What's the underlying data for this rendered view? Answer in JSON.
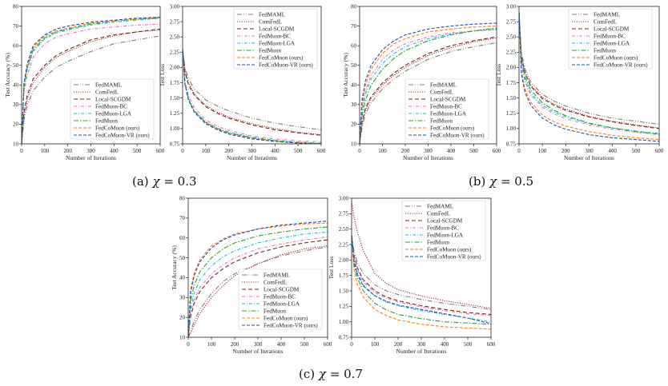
{
  "legend_entries": [
    "FedMAML",
    "ComFedL",
    "Local-SCGDM",
    "FedMuon-BC",
    "FedMuon-LGA",
    "FedMuon",
    "FedCoMuon (ours)",
    "FedCoMuon-VR (ours)"
  ],
  "series_styles": [
    {
      "name": "FedMAML",
      "color": "#7f7f7f",
      "dash": "6 2 1 2 1 2"
    },
    {
      "name": "ComFedL",
      "color": "#a52a2a",
      "dash": "1.2 1.6"
    },
    {
      "name": "Local-SCGDM",
      "color": "#6b2c1b",
      "dash": "5 3"
    },
    {
      "name": "FedMuon-BC",
      "color": "#e377c2",
      "dash": "4 2 1 2"
    },
    {
      "name": "FedMuon-LGA",
      "color": "#17becf",
      "dash": "4 2 1 2"
    },
    {
      "name": "FedMuon",
      "color": "#2ca02c",
      "dash": "6 2 1.5 2"
    },
    {
      "name": "FedCoMuon (ours)",
      "color": "#ff7f0e",
      "dash": "4 2"
    },
    {
      "name": "FedCoMuon-VR (ours)",
      "color": "#1f4fb4",
      "dash": "4 2"
    }
  ],
  "captions": [
    {
      "label": "(a)",
      "sym": "χ",
      "value": "= 0.3"
    },
    {
      "label": "(b)",
      "sym": "χ",
      "value": "= 0.5"
    },
    {
      "label": "(c)",
      "sym": "χ",
      "value": "= 0.7"
    }
  ],
  "chart_data": [
    {
      "type": "line",
      "panel": "(a) χ = 0.3, accuracy",
      "xlabel": "Number of Iterations",
      "ylabel": "Test Accuracy (%)",
      "xlim": [
        0,
        600
      ],
      "ylim": [
        10,
        80
      ],
      "xticks": [
        0,
        100,
        200,
        300,
        400,
        500,
        600
      ],
      "yticks": [
        10,
        20,
        30,
        40,
        50,
        60,
        70,
        80
      ],
      "legend_position": "lower-right",
      "grid": false,
      "x": [
        0,
        10,
        25,
        50,
        100,
        150,
        200,
        300,
        400,
        500,
        600
      ],
      "series": [
        {
          "name": "FedMAML",
          "values": [
            10,
            22,
            30,
            37,
            44,
            49,
            52,
            57,
            61,
            63,
            65
          ]
        },
        {
          "name": "ComFedL",
          "values": [
            10,
            24,
            33,
            41,
            49,
            54,
            57,
            62,
            65,
            67,
            68
          ]
        },
        {
          "name": "Local-SCGDM",
          "values": [
            10,
            26,
            35,
            43,
            50,
            55,
            58,
            63,
            65.5,
            67,
            68.5
          ]
        },
        {
          "name": "FedMuon-BC",
          "values": [
            10,
            36,
            45,
            54,
            61,
            64.5,
            66,
            68.5,
            69.5,
            70.5,
            71
          ]
        },
        {
          "name": "FedMuon-LGA",
          "values": [
            10,
            38,
            48,
            57,
            63.5,
            66.5,
            68,
            70.5,
            72,
            73,
            74
          ]
        },
        {
          "name": "FedMuon",
          "values": [
            10,
            39,
            49,
            58,
            64,
            67,
            68.5,
            71,
            72.5,
            73.5,
            74
          ]
        },
        {
          "name": "FedCoMuon (ours)",
          "values": [
            10,
            40,
            50,
            59,
            65,
            67.5,
            69,
            71.5,
            72.5,
            73.5,
            74.5
          ]
        },
        {
          "name": "FedCoMuon-VR (ours)",
          "values": [
            10,
            41,
            51,
            60,
            65.5,
            68.5,
            70,
            72,
            73,
            74,
            74.5
          ]
        }
      ]
    },
    {
      "type": "line",
      "panel": "(a) χ = 0.3, loss",
      "xlabel": "Number of Iterations",
      "ylabel": "Test Loss",
      "xlim": [
        0,
        600
      ],
      "ylim": [
        0.75,
        3.0
      ],
      "xticks": [
        0,
        100,
        200,
        300,
        400,
        500,
        600
      ],
      "yticks": [
        0.75,
        1.0,
        1.25,
        1.5,
        1.75,
        2.0,
        2.25,
        2.5,
        2.75,
        3.0
      ],
      "legend_position": "top-right",
      "grid": false,
      "x": [
        0,
        10,
        25,
        50,
        100,
        150,
        200,
        300,
        400,
        500,
        600
      ],
      "series": [
        {
          "name": "FedMAML",
          "values": [
            2.3,
            2.0,
            1.82,
            1.65,
            1.47,
            1.37,
            1.29,
            1.17,
            1.09,
            1.03,
            0.98
          ]
        },
        {
          "name": "ComFedL",
          "values": [
            2.3,
            1.95,
            1.75,
            1.57,
            1.38,
            1.27,
            1.19,
            1.08,
            1.0,
            0.94,
            0.9
          ]
        },
        {
          "name": "Local-SCGDM",
          "values": [
            2.3,
            1.93,
            1.72,
            1.55,
            1.36,
            1.25,
            1.17,
            1.06,
            0.98,
            0.93,
            0.89
          ]
        },
        {
          "name": "FedMuon-BC",
          "values": [
            2.3,
            1.78,
            1.55,
            1.35,
            1.14,
            1.04,
            0.97,
            0.88,
            0.83,
            0.8,
            0.78
          ]
        },
        {
          "name": "FedMuon-LGA",
          "values": [
            2.3,
            1.75,
            1.5,
            1.3,
            1.11,
            1.01,
            0.94,
            0.86,
            0.81,
            0.78,
            0.76
          ]
        },
        {
          "name": "FedMuon",
          "values": [
            2.3,
            1.74,
            1.49,
            1.29,
            1.1,
            1.0,
            0.93,
            0.85,
            0.8,
            0.77,
            0.75
          ]
        },
        {
          "name": "FedCoMuon (ours)",
          "values": [
            2.3,
            1.73,
            1.48,
            1.28,
            1.09,
            0.99,
            0.92,
            0.84,
            0.79,
            0.77,
            0.75
          ]
        },
        {
          "name": "FedCoMuon-VR (ours)",
          "values": [
            2.3,
            1.72,
            1.47,
            1.27,
            1.08,
            0.98,
            0.91,
            0.83,
            0.79,
            0.76,
            0.75
          ]
        }
      ]
    },
    {
      "type": "line",
      "panel": "(b) χ = 0.5, accuracy",
      "xlabel": "Number of Iterations",
      "ylabel": "Test Accuracy (%)",
      "xlim": [
        0,
        600
      ],
      "ylim": [
        10,
        80
      ],
      "xticks": [
        0,
        100,
        200,
        300,
        400,
        500,
        600
      ],
      "yticks": [
        10,
        20,
        30,
        40,
        50,
        60,
        70,
        80
      ],
      "legend_position": "lower-right",
      "grid": false,
      "x": [
        0,
        10,
        25,
        50,
        100,
        150,
        200,
        300,
        400,
        500,
        600
      ],
      "series": [
        {
          "name": "FedMAML",
          "values": [
            10,
            18,
            25,
            31,
            38,
            43,
            47,
            53,
            57,
            59.5,
            61.5
          ]
        },
        {
          "name": "ComFedL",
          "values": [
            10,
            20,
            27,
            33,
            40,
            45,
            49,
            55,
            59,
            62,
            64
          ]
        },
        {
          "name": "Local-SCGDM",
          "values": [
            10,
            21,
            28,
            34,
            41,
            46,
            50,
            56,
            60,
            62.5,
            64.5
          ]
        },
        {
          "name": "FedMuon-BC",
          "values": [
            10,
            28,
            37,
            45,
            53,
            58,
            61,
            64.5,
            66.5,
            67.5,
            68
          ]
        },
        {
          "name": "FedMuon-LGA",
          "values": [
            10,
            26,
            35,
            43,
            51,
            56,
            59.5,
            63.5,
            66,
            67.5,
            68.5
          ]
        },
        {
          "name": "FedMuon",
          "values": [
            10,
            24,
            32,
            40,
            48,
            53.5,
            57.5,
            62.5,
            65.5,
            67.5,
            69
          ]
        },
        {
          "name": "FedCoMuon (ours)",
          "values": [
            10,
            30,
            40,
            48,
            56,
            61,
            63.5,
            67,
            68.5,
            69.5,
            70
          ]
        },
        {
          "name": "FedCoMuon-VR (ours)",
          "values": [
            10,
            32,
            42,
            50,
            58,
            62.5,
            65.5,
            68.5,
            70,
            71,
            71.5
          ]
        }
      ]
    },
    {
      "type": "line",
      "panel": "(b) χ = 0.5, loss",
      "xlabel": "Number of Iterations",
      "ylabel": "Test Loss",
      "xlim": [
        0,
        600
      ],
      "ylim": [
        0.75,
        3.0
      ],
      "xticks": [
        0,
        100,
        200,
        300,
        400,
        500,
        600
      ],
      "yticks": [
        0.75,
        1.0,
        1.25,
        1.5,
        1.75,
        2.0,
        2.25,
        2.5,
        2.75,
        3.0
      ],
      "legend_position": "top-right",
      "grid": false,
      "x": [
        0,
        10,
        25,
        50,
        100,
        150,
        200,
        300,
        400,
        500,
        600
      ],
      "series": [
        {
          "name": "FedMAML",
          "values": [
            2.9,
            2.25,
            1.98,
            1.76,
            1.56,
            1.45,
            1.37,
            1.25,
            1.17,
            1.12,
            1.07
          ]
        },
        {
          "name": "ComFedL",
          "values": [
            2.9,
            2.2,
            1.93,
            1.71,
            1.51,
            1.4,
            1.32,
            1.2,
            1.12,
            1.06,
            1.01
          ]
        },
        {
          "name": "Local-SCGDM",
          "values": [
            2.9,
            2.18,
            1.91,
            1.69,
            1.49,
            1.38,
            1.3,
            1.19,
            1.11,
            1.05,
            1.0
          ]
        },
        {
          "name": "FedMuon-BC",
          "values": [
            2.9,
            2.05,
            1.77,
            1.55,
            1.35,
            1.24,
            1.16,
            1.06,
            0.99,
            0.94,
            0.9
          ]
        },
        {
          "name": "FedMuon-LGA",
          "values": [
            2.9,
            2.08,
            1.8,
            1.58,
            1.38,
            1.27,
            1.19,
            1.08,
            1.01,
            0.96,
            0.92
          ]
        },
        {
          "name": "FedMuon",
          "values": [
            2.9,
            2.12,
            1.85,
            1.63,
            1.42,
            1.3,
            1.21,
            1.09,
            1.01,
            0.95,
            0.91
          ]
        },
        {
          "name": "FedCoMuon (ours)",
          "values": [
            2.9,
            1.95,
            1.65,
            1.43,
            1.22,
            1.11,
            1.04,
            0.95,
            0.89,
            0.85,
            0.82
          ]
        },
        {
          "name": "FedCoMuon-VR (ours)",
          "values": [
            2.9,
            1.9,
            1.6,
            1.38,
            1.17,
            1.06,
            0.99,
            0.9,
            0.85,
            0.82,
            0.79
          ]
        }
      ]
    },
    {
      "type": "line",
      "panel": "(c) χ = 0.7, accuracy",
      "xlabel": "Number of Iterations",
      "ylabel": "Test Accuracy (%)",
      "xlim": [
        0,
        600
      ],
      "ylim": [
        10,
        80
      ],
      "xticks": [
        0,
        100,
        200,
        300,
        400,
        500,
        600
      ],
      "yticks": [
        10,
        20,
        30,
        40,
        50,
        60,
        70,
        80
      ],
      "legend_position": "lower-right",
      "grid": false,
      "x": [
        0,
        10,
        25,
        50,
        100,
        150,
        200,
        300,
        400,
        500,
        600
      ],
      "series": [
        {
          "name": "FedMAML",
          "values": [
            10,
            13,
            18,
            24,
            32,
            38,
            42,
            47,
            51,
            53.5,
            55.5
          ]
        },
        {
          "name": "ComFedL",
          "values": [
            10,
            12,
            16,
            22,
            30,
            36,
            41,
            47,
            51.5,
            54.5,
            56
          ]
        },
        {
          "name": "Local-SCGDM",
          "values": [
            10,
            20,
            27,
            33,
            40,
            44.5,
            48,
            52.5,
            55.5,
            57.5,
            59
          ]
        },
        {
          "name": "FedMuon-BC",
          "values": [
            10,
            22,
            29,
            35,
            42,
            46.5,
            50,
            54.5,
            57,
            59,
            60.5
          ]
        },
        {
          "name": "FedMuon-LGA",
          "values": [
            10,
            24,
            32,
            39,
            46,
            50.5,
            53.5,
            57.5,
            60,
            62,
            63
          ]
        },
        {
          "name": "FedMuon",
          "values": [
            10,
            28,
            36,
            43,
            50,
            54.5,
            57.5,
            61,
            63,
            64.5,
            65.5
          ]
        },
        {
          "name": "FedCoMuon (ours)",
          "values": [
            10,
            34,
            42,
            49,
            56,
            59.5,
            62,
            64.5,
            66,
            67,
            67.5
          ]
        },
        {
          "name": "FedCoMuon-VR (ours)",
          "values": [
            10,
            32,
            41,
            48,
            55,
            59,
            61.5,
            64.5,
            66.5,
            67.5,
            68.5
          ]
        }
      ]
    },
    {
      "type": "line",
      "panel": "(c) χ = 0.7, loss",
      "xlabel": "Number of Iterations",
      "ylabel": "Test Loss",
      "xlim": [
        0,
        600
      ],
      "ylim": [
        0.75,
        3.0
      ],
      "xticks": [
        0,
        100,
        200,
        300,
        400,
        500,
        600
      ],
      "yticks": [
        0.75,
        1.0,
        1.25,
        1.5,
        1.75,
        2.0,
        2.25,
        2.5,
        2.75,
        3.0
      ],
      "legend_position": "top-right",
      "grid": false,
      "x": [
        0,
        10,
        25,
        50,
        100,
        150,
        200,
        300,
        400,
        500,
        600
      ],
      "series": [
        {
          "name": "FedMAML",
          "values": [
            2.4,
            2.15,
            1.95,
            1.78,
            1.6,
            1.5,
            1.44,
            1.36,
            1.3,
            1.25,
            1.2
          ]
        },
        {
          "name": "ComFedL",
          "values": [
            2.95,
            2.7,
            2.45,
            2.15,
            1.78,
            1.62,
            1.52,
            1.42,
            1.34,
            1.28,
            1.22
          ]
        },
        {
          "name": "Local-SCGDM",
          "values": [
            2.4,
            2.08,
            1.87,
            1.68,
            1.5,
            1.4,
            1.34,
            1.26,
            1.2,
            1.15,
            1.12
          ]
        },
        {
          "name": "FedMuon-BC",
          "values": [
            2.4,
            2.05,
            1.84,
            1.65,
            1.47,
            1.38,
            1.32,
            1.24,
            1.18,
            1.13,
            1.1
          ]
        },
        {
          "name": "FedMuon-LGA",
          "values": [
            2.4,
            2.0,
            1.79,
            1.6,
            1.42,
            1.32,
            1.26,
            1.18,
            1.12,
            1.06,
            1.0
          ]
        },
        {
          "name": "FedMuon",
          "values": [
            2.4,
            1.93,
            1.7,
            1.5,
            1.3,
            1.19,
            1.12,
            1.05,
            1.0,
            0.98,
            0.96
          ]
        },
        {
          "name": "FedCoMuon (ours)",
          "values": [
            2.4,
            1.85,
            1.6,
            1.4,
            1.2,
            1.1,
            1.03,
            0.96,
            0.92,
            0.9,
            0.88
          ]
        },
        {
          "name": "FedCoMuon-VR (ours)",
          "values": [
            2.4,
            1.98,
            1.76,
            1.58,
            1.42,
            1.33,
            1.27,
            1.2,
            1.13,
            1.06,
            0.97
          ]
        }
      ]
    }
  ]
}
